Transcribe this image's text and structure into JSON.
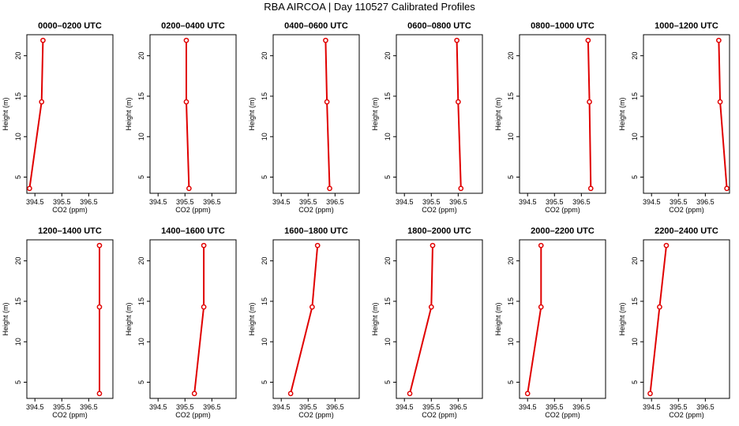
{
  "title": "RBA AIRCOA |  Day 110527  Calibrated Profiles",
  "colors": {
    "series": "#e00000",
    "axis": "#000000",
    "background": "#ffffff"
  },
  "chart_data": [
    {
      "type": "line",
      "title": "0000–0200 UTC",
      "xlabel": "CO2 (ppm)",
      "ylabel": "Height (m)",
      "xlim": [
        394.2,
        397.4
      ],
      "ylim": [
        3.0,
        22.6
      ],
      "xticks": [
        "394.5",
        "395.5",
        "396.5"
      ],
      "yticks": [
        "5",
        "10",
        "15",
        "20"
      ],
      "points": [
        {
          "x": 394.3,
          "y": 3.6
        },
        {
          "x": 394.75,
          "y": 14.3
        },
        {
          "x": 394.8,
          "y": 21.9
        }
      ]
    },
    {
      "type": "line",
      "title": "0200–0400 UTC",
      "xlabel": "CO2 (ppm)",
      "ylabel": "Height (m)",
      "xlim": [
        394.2,
        397.4
      ],
      "ylim": [
        3.0,
        22.6
      ],
      "xticks": [
        "394.5",
        "395.5",
        "396.5"
      ],
      "yticks": [
        "5",
        "10",
        "15",
        "20"
      ],
      "points": [
        {
          "x": 395.65,
          "y": 3.6
        },
        {
          "x": 395.55,
          "y": 14.3
        },
        {
          "x": 395.55,
          "y": 21.9
        }
      ]
    },
    {
      "type": "line",
      "title": "0400–0600 UTC",
      "xlabel": "CO2 (ppm)",
      "ylabel": "Height (m)",
      "xlim": [
        394.2,
        397.4
      ],
      "ylim": [
        3.0,
        22.6
      ],
      "xticks": [
        "394.5",
        "395.5",
        "396.5"
      ],
      "yticks": [
        "5",
        "10",
        "15",
        "20"
      ],
      "points": [
        {
          "x": 396.3,
          "y": 3.6
        },
        {
          "x": 396.2,
          "y": 14.3
        },
        {
          "x": 396.15,
          "y": 21.9
        }
      ]
    },
    {
      "type": "line",
      "title": "0600–0800 UTC",
      "xlabel": "CO2 (ppm)",
      "ylabel": "Height (m)",
      "xlim": [
        394.2,
        397.4
      ],
      "ylim": [
        3.0,
        22.6
      ],
      "xticks": [
        "394.5",
        "395.5",
        "396.5"
      ],
      "yticks": [
        "5",
        "10",
        "15",
        "20"
      ],
      "points": [
        {
          "x": 396.6,
          "y": 3.6
        },
        {
          "x": 396.5,
          "y": 14.3
        },
        {
          "x": 396.45,
          "y": 21.9
        }
      ]
    },
    {
      "type": "line",
      "title": "0800–1000 UTC",
      "xlabel": "CO2 (ppm)",
      "ylabel": "Height (m)",
      "xlim": [
        394.2,
        397.4
      ],
      "ylim": [
        3.0,
        22.6
      ],
      "xticks": [
        "394.5",
        "395.5",
        "396.5"
      ],
      "yticks": [
        "5",
        "10",
        "15",
        "20"
      ],
      "points": [
        {
          "x": 396.85,
          "y": 3.6
        },
        {
          "x": 396.8,
          "y": 14.3
        },
        {
          "x": 396.75,
          "y": 21.9
        }
      ]
    },
    {
      "type": "line",
      "title": "1000–1200 UTC",
      "xlabel": "CO2 (ppm)",
      "ylabel": "Height (m)",
      "xlim": [
        394.2,
        397.4
      ],
      "ylim": [
        3.0,
        22.6
      ],
      "xticks": [
        "394.5",
        "395.5",
        "396.5"
      ],
      "yticks": [
        "5",
        "10",
        "15",
        "20"
      ],
      "points": [
        {
          "x": 397.3,
          "y": 3.6
        },
        {
          "x": 397.05,
          "y": 14.3
        },
        {
          "x": 397.0,
          "y": 21.9
        }
      ]
    },
    {
      "type": "line",
      "title": "1200–1400 UTC",
      "xlabel": "CO2 (ppm)",
      "ylabel": "Height (m)",
      "xlim": [
        394.2,
        397.4
      ],
      "ylim": [
        3.0,
        22.6
      ],
      "xticks": [
        "394.5",
        "395.5",
        "396.5"
      ],
      "yticks": [
        "5",
        "10",
        "15",
        "20"
      ],
      "points": [
        {
          "x": 396.9,
          "y": 3.6
        },
        {
          "x": 396.9,
          "y": 14.3
        },
        {
          "x": 396.9,
          "y": 21.9
        }
      ]
    },
    {
      "type": "line",
      "title": "1400–1600 UTC",
      "xlabel": "CO2 (ppm)",
      "ylabel": "Height (m)",
      "xlim": [
        394.2,
        397.4
      ],
      "ylim": [
        3.0,
        22.6
      ],
      "xticks": [
        "394.5",
        "395.5",
        "396.5"
      ],
      "yticks": [
        "5",
        "10",
        "15",
        "20"
      ],
      "points": [
        {
          "x": 395.85,
          "y": 3.6
        },
        {
          "x": 396.2,
          "y": 14.3
        },
        {
          "x": 396.2,
          "y": 21.9
        }
      ]
    },
    {
      "type": "line",
      "title": "1600–1800 UTC",
      "xlabel": "CO2 (ppm)",
      "ylabel": "Height (m)",
      "xlim": [
        394.2,
        397.4
      ],
      "ylim": [
        3.0,
        22.6
      ],
      "xticks": [
        "394.5",
        "395.5",
        "396.5"
      ],
      "yticks": [
        "5",
        "10",
        "15",
        "20"
      ],
      "points": [
        {
          "x": 394.85,
          "y": 3.6
        },
        {
          "x": 395.65,
          "y": 14.3
        },
        {
          "x": 395.85,
          "y": 21.9
        }
      ]
    },
    {
      "type": "line",
      "title": "1800–2000 UTC",
      "xlabel": "CO2 (ppm)",
      "ylabel": "Height (m)",
      "xlim": [
        394.2,
        397.4
      ],
      "ylim": [
        3.0,
        22.6
      ],
      "xticks": [
        "394.5",
        "395.5",
        "396.5"
      ],
      "yticks": [
        "5",
        "10",
        "15",
        "20"
      ],
      "points": [
        {
          "x": 394.7,
          "y": 3.6
        },
        {
          "x": 395.5,
          "y": 14.3
        },
        {
          "x": 395.55,
          "y": 21.9
        }
      ]
    },
    {
      "type": "line",
      "title": "2000–2200 UTC",
      "xlabel": "CO2 (ppm)",
      "ylabel": "Height (m)",
      "xlim": [
        394.2,
        397.4
      ],
      "ylim": [
        3.0,
        22.6
      ],
      "xticks": [
        "394.5",
        "395.5",
        "396.5"
      ],
      "yticks": [
        "5",
        "10",
        "15",
        "20"
      ],
      "points": [
        {
          "x": 394.5,
          "y": 3.6
        },
        {
          "x": 395.0,
          "y": 14.3
        },
        {
          "x": 395.0,
          "y": 21.9
        }
      ]
    },
    {
      "type": "line",
      "title": "2200–2400 UTC",
      "xlabel": "CO2 (ppm)",
      "ylabel": "Height (m)",
      "xlim": [
        394.2,
        397.4
      ],
      "ylim": [
        3.0,
        22.6
      ],
      "xticks": [
        "394.5",
        "395.5",
        "396.5"
      ],
      "yticks": [
        "5",
        "10",
        "15",
        "20"
      ],
      "points": [
        {
          "x": 394.45,
          "y": 3.6
        },
        {
          "x": 394.8,
          "y": 14.3
        },
        {
          "x": 395.05,
          "y": 21.9
        }
      ]
    }
  ]
}
